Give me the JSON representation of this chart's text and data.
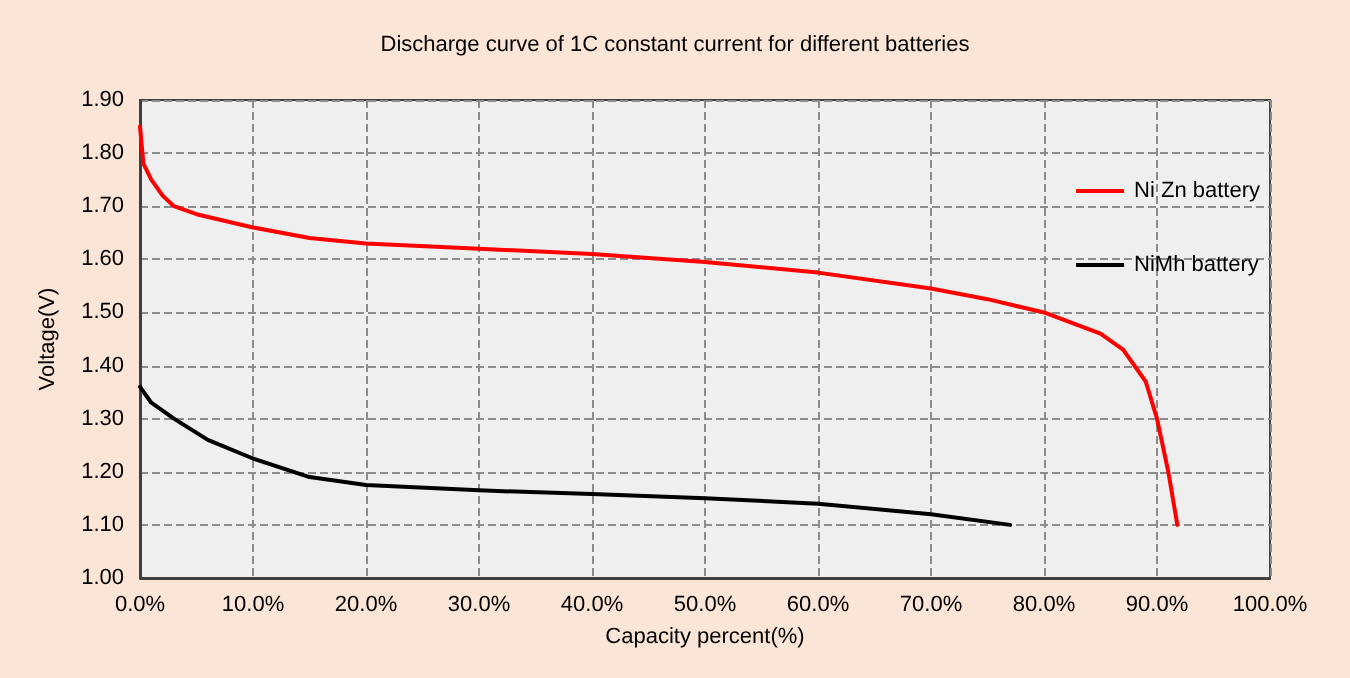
{
  "chart_data": {
    "type": "line",
    "title": "Discharge curve of 1C constant current for different batteries",
    "xlabel": "Capacity percent(%)",
    "ylabel": "Voltage(V)",
    "xlim": [
      0,
      100
    ],
    "xticks": [
      {
        "value": 0,
        "label": "0.0%"
      },
      {
        "value": 10,
        "label": "10.0%"
      },
      {
        "value": 20,
        "label": "20.0%"
      },
      {
        "value": 30,
        "label": "30.0%"
      },
      {
        "value": 40,
        "label": "40.0%"
      },
      {
        "value": 50,
        "label": "50.0%"
      },
      {
        "value": 60,
        "label": "60.0%"
      },
      {
        "value": 70,
        "label": "70.0%"
      },
      {
        "value": 80,
        "label": "80.0%"
      },
      {
        "value": 90,
        "label": "90.0%"
      },
      {
        "value": 100,
        "label": "100.0%"
      }
    ],
    "ylim": [
      1.0,
      1.9
    ],
    "yticks": [
      {
        "value": 1.0,
        "label": "1.00"
      },
      {
        "value": 1.1,
        "label": "1.10"
      },
      {
        "value": 1.2,
        "label": "1.20"
      },
      {
        "value": 1.3,
        "label": "1.30"
      },
      {
        "value": 1.4,
        "label": "1.40"
      },
      {
        "value": 1.5,
        "label": "1.50"
      },
      {
        "value": 1.6,
        "label": "1.60"
      },
      {
        "value": 1.7,
        "label": "1.70"
      },
      {
        "value": 1.8,
        "label": "1.80"
      },
      {
        "value": 1.9,
        "label": "1.90"
      }
    ],
    "grid": true,
    "legend": "top right",
    "marker": "none",
    "line_style": "solid",
    "series": [
      {
        "name": "Ni Zn battery",
        "color": "#ff0000",
        "x": [
          0,
          0.3,
          1,
          2,
          3,
          5,
          10,
          15,
          20,
          30,
          40,
          50,
          60,
          70,
          75,
          80,
          85,
          87,
          89,
          90,
          91,
          91.8
        ],
        "values": [
          1.85,
          1.78,
          1.75,
          1.72,
          1.7,
          1.685,
          1.66,
          1.64,
          1.63,
          1.62,
          1.61,
          1.595,
          1.575,
          1.545,
          1.525,
          1.5,
          1.46,
          1.43,
          1.37,
          1.3,
          1.2,
          1.1
        ]
      },
      {
        "name": "NiMh battery",
        "color": "#000000",
        "x": [
          0,
          1,
          3,
          6,
          10,
          15,
          20,
          30,
          40,
          50,
          60,
          70,
          77
        ],
        "values": [
          1.36,
          1.33,
          1.3,
          1.26,
          1.225,
          1.19,
          1.175,
          1.165,
          1.158,
          1.15,
          1.14,
          1.12,
          1.1
        ]
      }
    ]
  }
}
